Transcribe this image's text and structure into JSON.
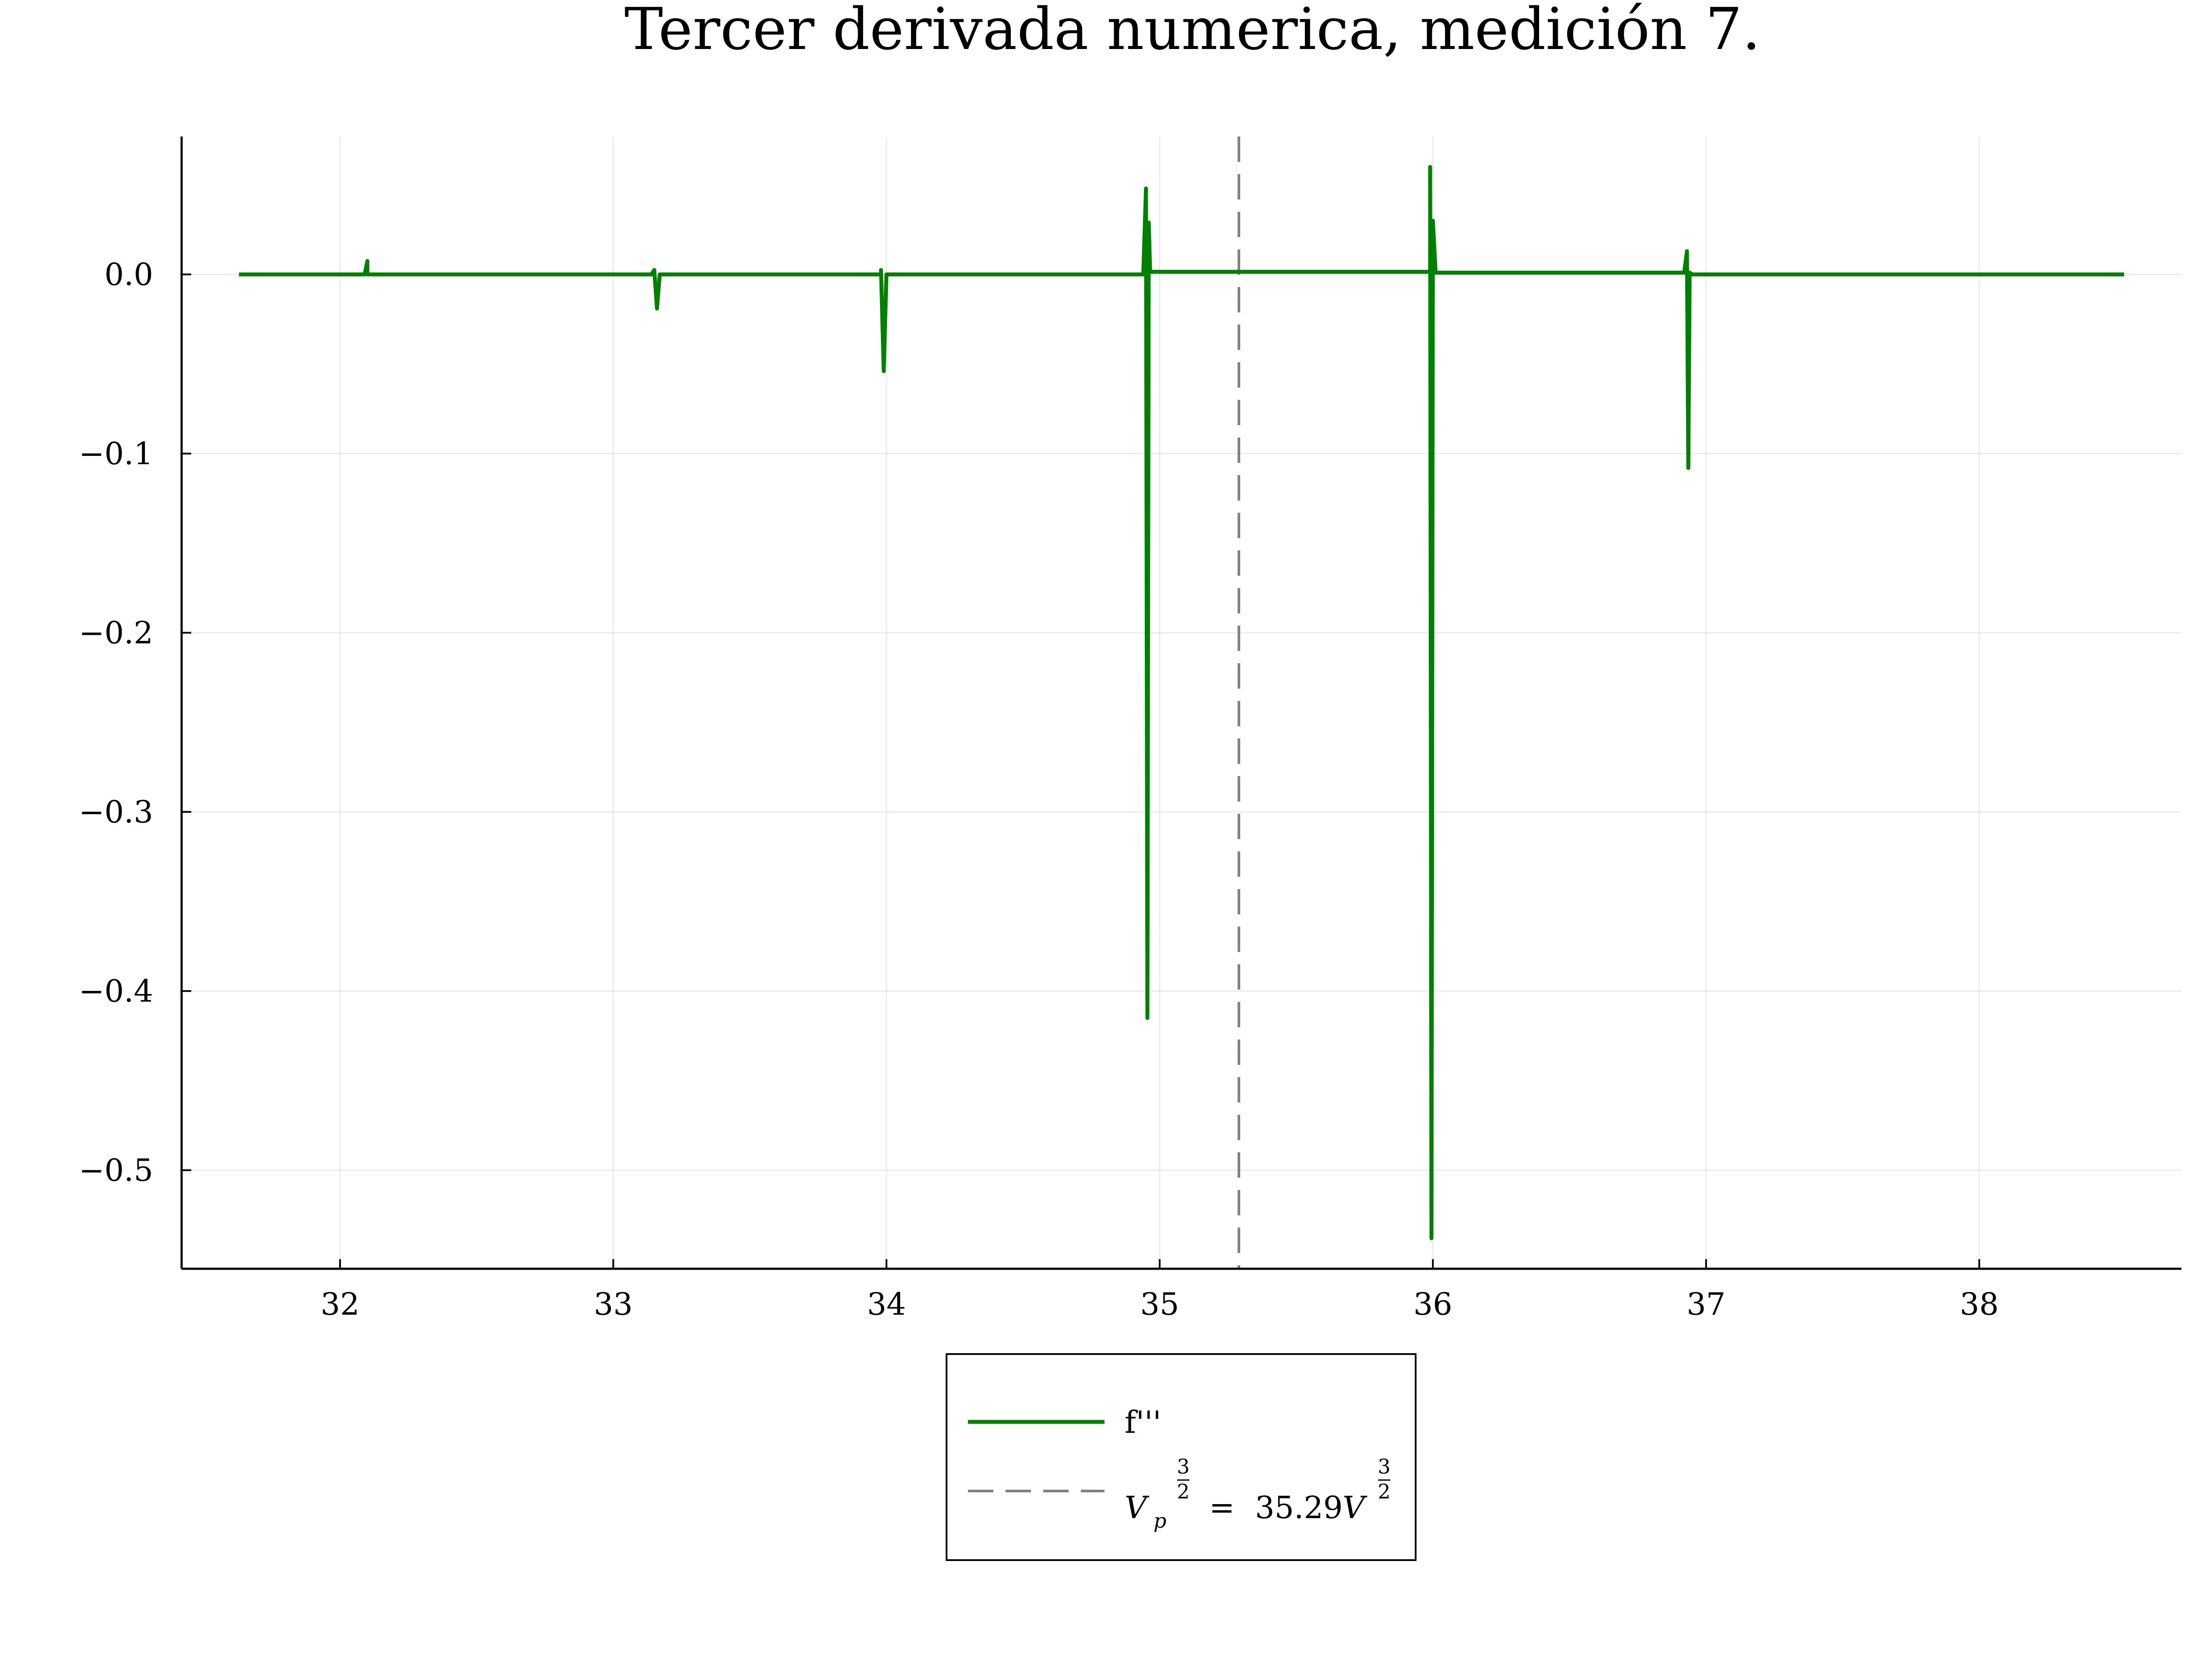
{
  "chart_data": {
    "type": "line",
    "title": "Tercer derivada numerica, medición 7.",
    "xlabel": "",
    "ylabel": "",
    "xlim": [
      31.42,
      38.74
    ],
    "ylim": [
      -0.555,
      0.077
    ],
    "xticks": [
      32,
      33,
      34,
      35,
      36,
      37,
      38
    ],
    "xtick_labels": [
      "32",
      "33",
      "34",
      "35",
      "36",
      "37",
      "38"
    ],
    "yticks": [
      0.0,
      -0.1,
      -0.2,
      -0.3,
      -0.4,
      -0.5
    ],
    "ytick_labels": [
      "0.0",
      "−0.1",
      "−0.2",
      "−0.3",
      "−0.4",
      "−0.5"
    ],
    "grid": true,
    "legend_position": "outside-bottom",
    "series": [
      {
        "name": "f'''",
        "color": "#008000",
        "style": "solid",
        "x": [
          31.63,
          32.09,
          32.1,
          32.1,
          32.11,
          33.14,
          33.15,
          33.16,
          33.17,
          33.98,
          33.98,
          33.99,
          34.0,
          34.94,
          34.95,
          34.955,
          34.96,
          34.965,
          35.99,
          35.99,
          35.995,
          36.0,
          36.01,
          36.92,
          36.93,
          36.935,
          36.94,
          36.95,
          38.53
        ],
        "y": [
          0.0,
          0.0,
          0.0075,
          0.0,
          0.0,
          0.0,
          0.0025,
          -0.019,
          0.0,
          0.0,
          0.0025,
          -0.054,
          0.0,
          0.0,
          0.048,
          -0.415,
          0.029,
          0.0015,
          0.0015,
          0.06,
          -0.538,
          0.03,
          0.001,
          0.001,
          0.013,
          -0.108,
          0.001,
          0.0,
          0.0
        ]
      },
      {
        "name": "V_p^(3/2) = 35.29 V^(3/2)",
        "color": "#808080",
        "style": "dashed",
        "vline_x": 35.29
      }
    ],
    "legend": {
      "entry1": "f'''",
      "entry2_base_V": "V",
      "entry2_sub": "p",
      "entry2_num": "3",
      "entry2_den": "2",
      "entry2_eq": "=",
      "entry2_value": "35.29",
      "entry2_unit": "V"
    }
  }
}
